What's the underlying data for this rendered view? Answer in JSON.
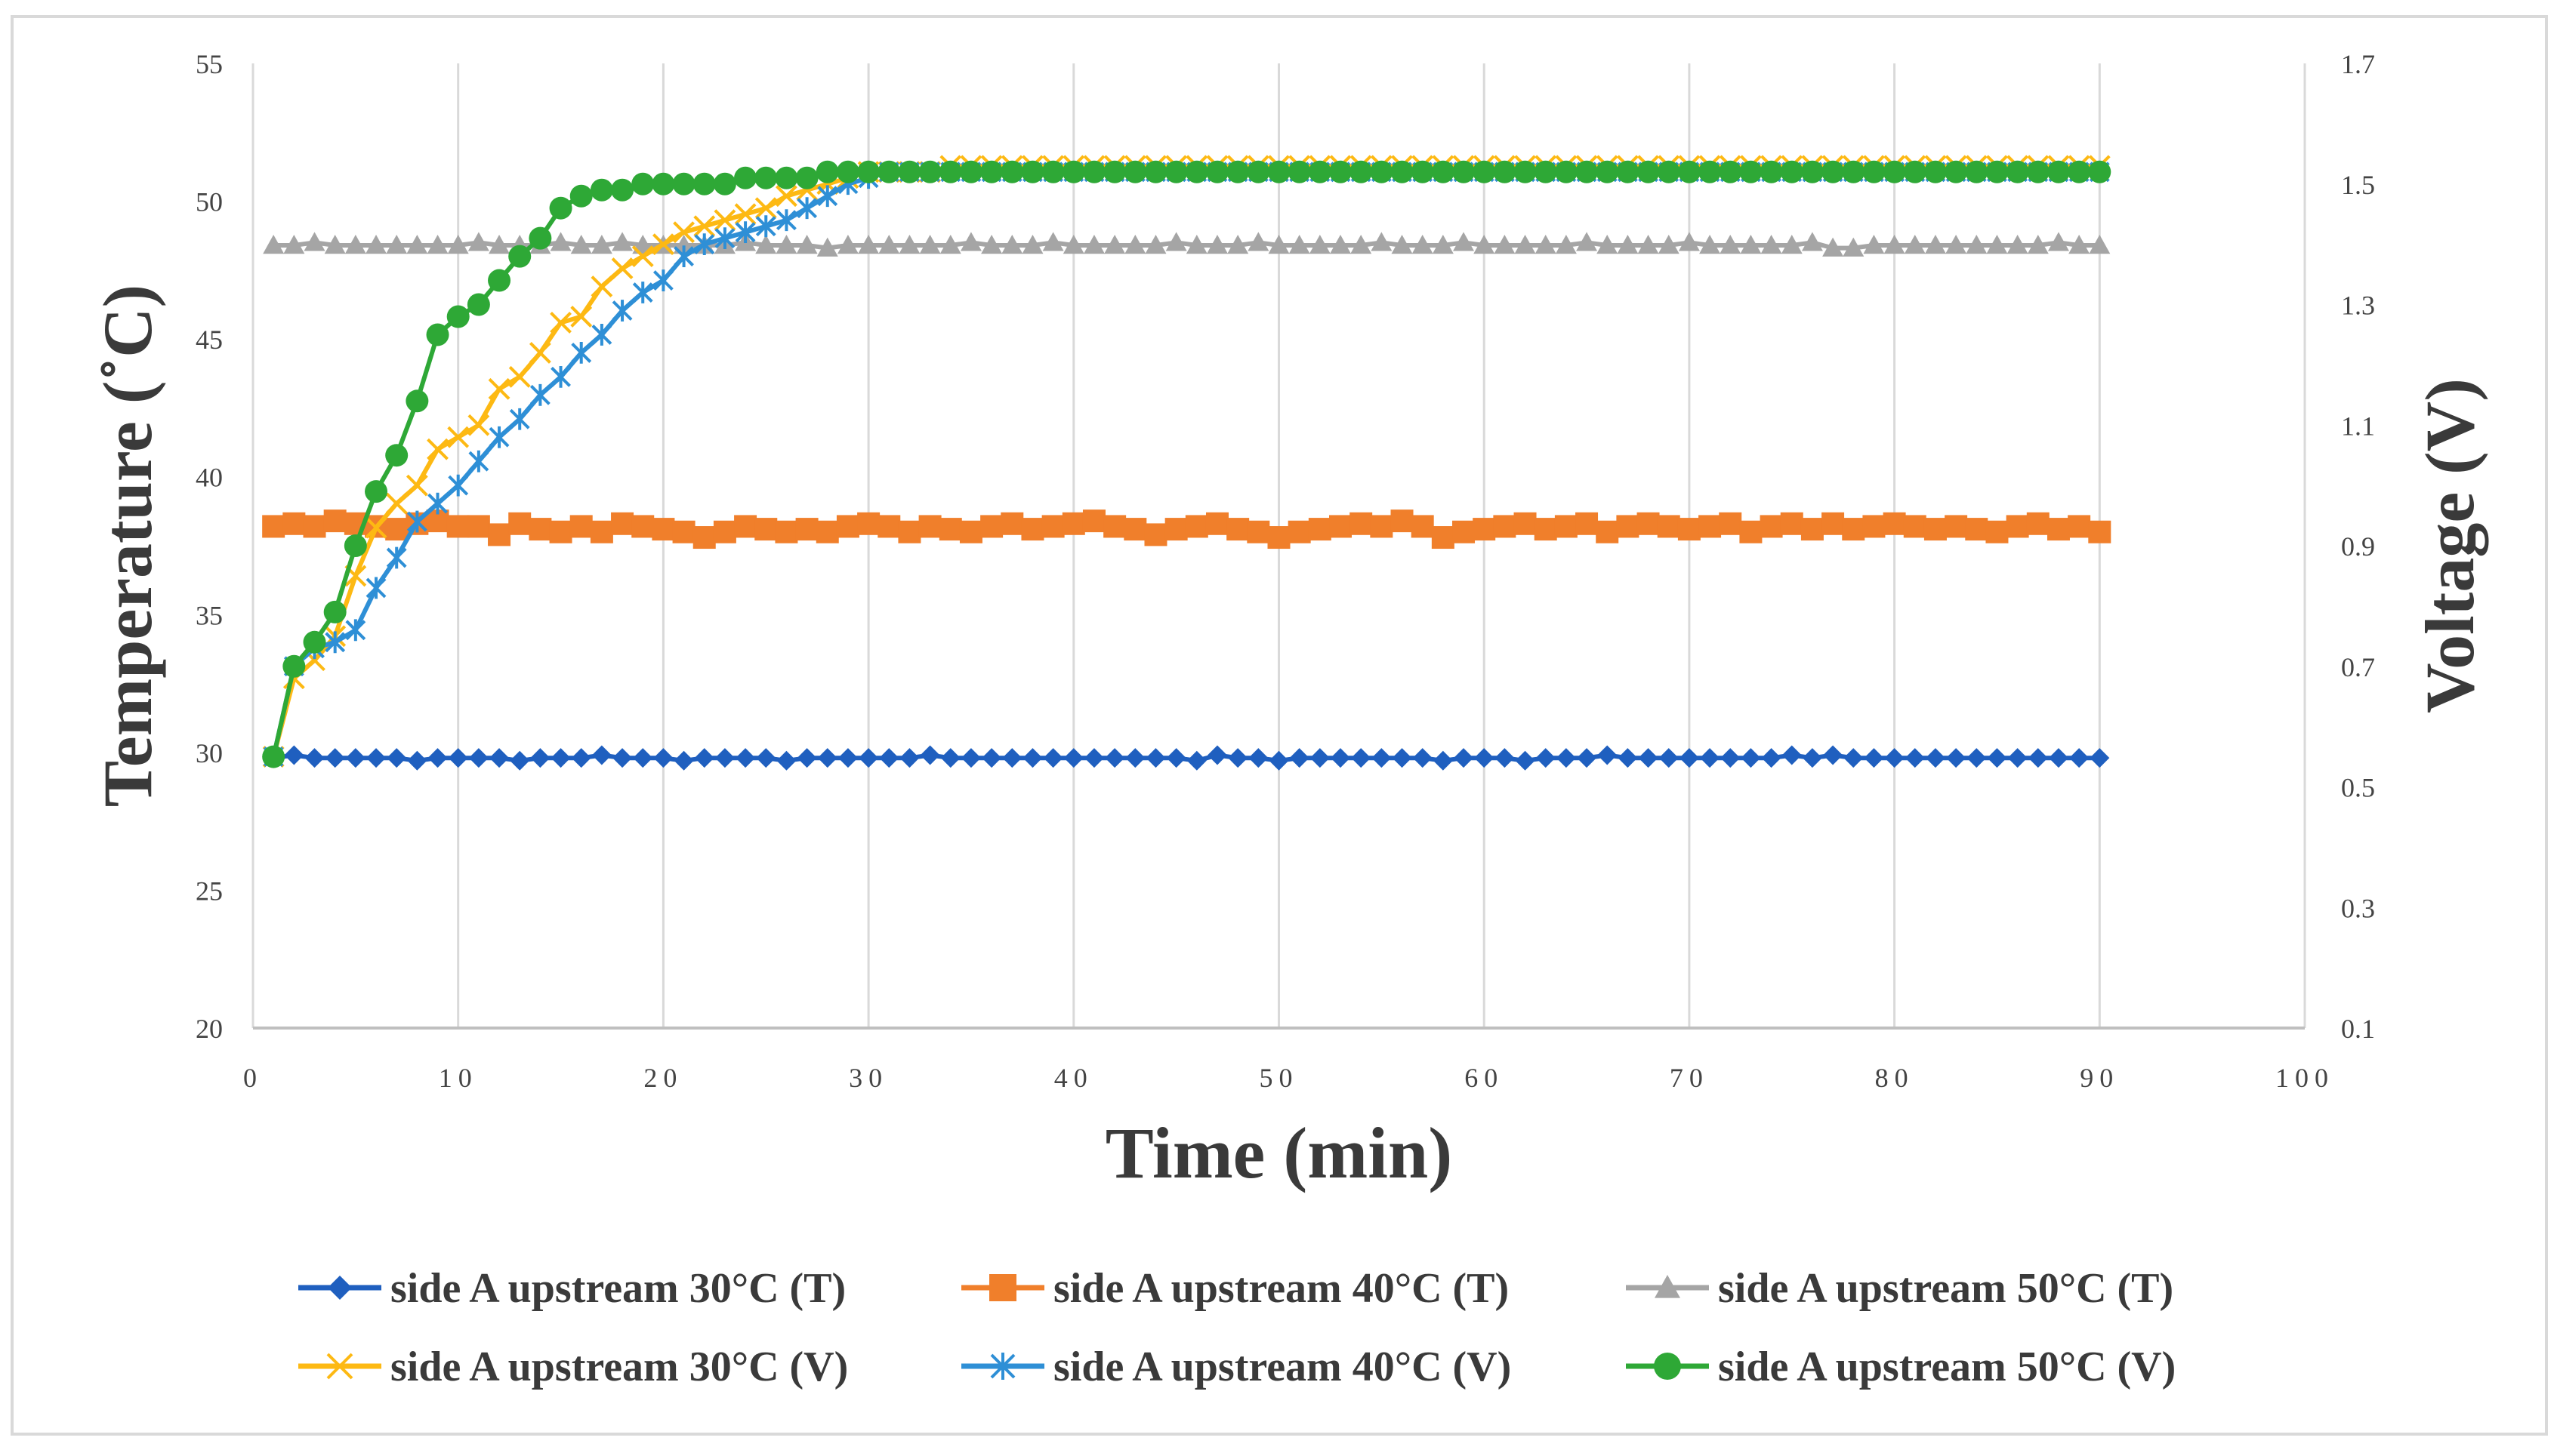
{
  "chart_data": {
    "type": "line",
    "xlabel": "Time (min)",
    "ylabel": "Temperature (˚C)",
    "y2label": "Voltage (V)",
    "xlim": [
      0,
      100
    ],
    "ylim": [
      20,
      55
    ],
    "y2lim": [
      0.1,
      1.7
    ],
    "xticks": [
      "0",
      "10",
      "20",
      "30",
      "40",
      "50",
      "60",
      "70",
      "80",
      "90",
      "100"
    ],
    "yticks": [
      "20",
      "25",
      "30",
      "35",
      "40",
      "45",
      "50",
      "55"
    ],
    "y2ticks": [
      "0.1",
      "0.3",
      "0.5",
      "0.7",
      "0.9",
      "1.1",
      "1.3",
      "1.5",
      "1.7"
    ],
    "grid": "vertical",
    "legend_position": "bottom",
    "series": [
      {
        "name": "side A upstream 30°C (T)",
        "axis": "left",
        "color": "#1f5fbf",
        "marker": "diamond",
        "x_start": 1,
        "x_end": 90,
        "values": [
          29.8,
          29.9,
          29.8,
          29.8,
          29.8,
          29.8,
          29.8,
          29.7,
          29.8,
          29.8,
          29.8,
          29.8,
          29.7,
          29.8,
          29.8,
          29.8,
          29.9,
          29.8,
          29.8,
          29.8,
          29.7,
          29.8,
          29.8,
          29.8,
          29.8,
          29.7,
          29.8,
          29.8,
          29.8,
          29.8,
          29.8,
          29.8,
          29.9,
          29.8,
          29.8,
          29.8,
          29.8,
          29.8,
          29.8,
          29.8,
          29.8,
          29.8,
          29.8,
          29.8,
          29.8,
          29.7,
          29.9,
          29.8,
          29.8,
          29.7,
          29.8,
          29.8,
          29.8,
          29.8,
          29.8,
          29.8,
          29.8,
          29.7,
          29.8,
          29.8,
          29.8,
          29.7,
          29.8,
          29.8,
          29.8,
          29.9,
          29.8,
          29.8,
          29.8,
          29.8,
          29.8,
          29.8,
          29.8,
          29.8,
          29.9,
          29.8,
          29.9,
          29.8,
          29.8,
          29.8,
          29.8,
          29.8,
          29.8,
          29.8,
          29.8,
          29.8,
          29.8,
          29.8,
          29.8,
          29.8
        ]
      },
      {
        "name": "side A upstream 40°C (T)",
        "axis": "left",
        "color": "#f07f2b",
        "marker": "square",
        "x_start": 1,
        "x_end": 90,
        "values": [
          38.2,
          38.3,
          38.2,
          38.4,
          38.3,
          38.2,
          38.1,
          38.3,
          38.4,
          38.2,
          38.2,
          37.9,
          38.3,
          38.1,
          38.0,
          38.2,
          38.0,
          38.3,
          38.2,
          38.1,
          38.0,
          37.8,
          38.0,
          38.2,
          38.1,
          38.0,
          38.1,
          38.0,
          38.2,
          38.3,
          38.2,
          38.0,
          38.2,
          38.1,
          38.0,
          38.2,
          38.3,
          38.1,
          38.2,
          38.3,
          38.4,
          38.2,
          38.1,
          37.9,
          38.1,
          38.2,
          38.3,
          38.1,
          38.0,
          37.8,
          38.0,
          38.1,
          38.2,
          38.3,
          38.2,
          38.4,
          38.2,
          37.8,
          38.0,
          38.1,
          38.2,
          38.3,
          38.1,
          38.2,
          38.3,
          38.0,
          38.2,
          38.3,
          38.2,
          38.1,
          38.2,
          38.3,
          38.0,
          38.2,
          38.3,
          38.1,
          38.3,
          38.1,
          38.2,
          38.3,
          38.2,
          38.1,
          38.2,
          38.1,
          38.0,
          38.2,
          38.3,
          38.1,
          38.2,
          38.0
        ]
      },
      {
        "name": "side A upstream 50°C (T)",
        "axis": "left",
        "color": "#a5a5a5",
        "marker": "triangle",
        "x_start": 1,
        "x_end": 90,
        "values": [
          48.4,
          48.4,
          48.5,
          48.4,
          48.4,
          48.4,
          48.4,
          48.4,
          48.4,
          48.4,
          48.5,
          48.4,
          48.4,
          48.4,
          48.5,
          48.4,
          48.4,
          48.5,
          48.4,
          48.4,
          48.4,
          48.4,
          48.4,
          48.5,
          48.4,
          48.4,
          48.4,
          48.3,
          48.4,
          48.4,
          48.4,
          48.4,
          48.4,
          48.4,
          48.5,
          48.4,
          48.4,
          48.4,
          48.5,
          48.4,
          48.4,
          48.4,
          48.4,
          48.4,
          48.5,
          48.4,
          48.4,
          48.4,
          48.5,
          48.4,
          48.4,
          48.4,
          48.4,
          48.4,
          48.5,
          48.4,
          48.4,
          48.4,
          48.5,
          48.4,
          48.4,
          48.4,
          48.4,
          48.4,
          48.5,
          48.4,
          48.4,
          48.4,
          48.4,
          48.5,
          48.4,
          48.4,
          48.4,
          48.4,
          48.4,
          48.5,
          48.3,
          48.3,
          48.4,
          48.4,
          48.4,
          48.4,
          48.4,
          48.4,
          48.4,
          48.4,
          48.4,
          48.5,
          48.4,
          48.4
        ]
      },
      {
        "name": "side A upstream 30°C (V)",
        "axis": "right",
        "color": "#fdb913",
        "marker": "x",
        "x_start": 1,
        "x_end": 90,
        "values": [
          0.55,
          0.68,
          0.71,
          0.75,
          0.85,
          0.93,
          0.97,
          1.0,
          1.06,
          1.08,
          1.1,
          1.16,
          1.18,
          1.22,
          1.27,
          1.28,
          1.33,
          1.36,
          1.38,
          1.4,
          1.42,
          1.43,
          1.44,
          1.45,
          1.46,
          1.48,
          1.49,
          1.5,
          1.51,
          1.52,
          1.52,
          1.52,
          1.52,
          1.53,
          1.53,
          1.53,
          1.53,
          1.53,
          1.53,
          1.53,
          1.53,
          1.53,
          1.53,
          1.53,
          1.53,
          1.53,
          1.53,
          1.53,
          1.53,
          1.53,
          1.53,
          1.53,
          1.53,
          1.53,
          1.53,
          1.53,
          1.53,
          1.53,
          1.53,
          1.53,
          1.53,
          1.53,
          1.53,
          1.53,
          1.53,
          1.53,
          1.53,
          1.53,
          1.53,
          1.53,
          1.53,
          1.53,
          1.53,
          1.53,
          1.53,
          1.53,
          1.53,
          1.53,
          1.53,
          1.53,
          1.53,
          1.53,
          1.53,
          1.53,
          1.53,
          1.53,
          1.53,
          1.53,
          1.53,
          1.53
        ]
      },
      {
        "name": "side A upstream 40°C (V)",
        "axis": "right",
        "color": "#2e8fd6",
        "marker": "asterisk",
        "x_start": 1,
        "x_end": 90,
        "values": [
          0.55,
          0.7,
          0.73,
          0.74,
          0.76,
          0.83,
          0.88,
          0.94,
          0.97,
          1.0,
          1.04,
          1.08,
          1.11,
          1.15,
          1.18,
          1.22,
          1.25,
          1.29,
          1.32,
          1.34,
          1.38,
          1.4,
          1.41,
          1.42,
          1.43,
          1.44,
          1.46,
          1.48,
          1.5,
          1.51,
          1.52,
          1.52,
          1.52,
          1.52,
          1.52,
          1.52,
          1.52,
          1.52,
          1.52,
          1.52,
          1.52,
          1.52,
          1.52,
          1.52,
          1.52,
          1.52,
          1.52,
          1.52,
          1.52,
          1.52,
          1.52,
          1.52,
          1.52,
          1.52,
          1.52,
          1.52,
          1.52,
          1.52,
          1.52,
          1.52,
          1.52,
          1.52,
          1.52,
          1.52,
          1.52,
          1.52,
          1.52,
          1.52,
          1.52,
          1.52,
          1.52,
          1.52,
          1.52,
          1.52,
          1.52,
          1.52,
          1.52,
          1.52,
          1.52,
          1.52,
          1.52,
          1.52,
          1.52,
          1.52,
          1.52,
          1.52,
          1.52,
          1.52,
          1.52,
          1.52
        ]
      },
      {
        "name": "side A upstream 50°C (V)",
        "axis": "right",
        "color": "#2ea836",
        "marker": "circle",
        "x_start": 1,
        "x_end": 90,
        "values": [
          0.55,
          0.7,
          0.74,
          0.79,
          0.9,
          0.99,
          1.05,
          1.14,
          1.25,
          1.28,
          1.3,
          1.34,
          1.38,
          1.41,
          1.46,
          1.48,
          1.49,
          1.49,
          1.5,
          1.5,
          1.5,
          1.5,
          1.5,
          1.51,
          1.51,
          1.51,
          1.51,
          1.52,
          1.52,
          1.52,
          1.52,
          1.52,
          1.52,
          1.52,
          1.52,
          1.52,
          1.52,
          1.52,
          1.52,
          1.52,
          1.52,
          1.52,
          1.52,
          1.52,
          1.52,
          1.52,
          1.52,
          1.52,
          1.52,
          1.52,
          1.52,
          1.52,
          1.52,
          1.52,
          1.52,
          1.52,
          1.52,
          1.52,
          1.52,
          1.52,
          1.52,
          1.52,
          1.52,
          1.52,
          1.52,
          1.52,
          1.52,
          1.52,
          1.52,
          1.52,
          1.52,
          1.52,
          1.52,
          1.52,
          1.52,
          1.52,
          1.52,
          1.52,
          1.52,
          1.52,
          1.52,
          1.52,
          1.52,
          1.52,
          1.52,
          1.52,
          1.52,
          1.52,
          1.52,
          1.52
        ]
      }
    ],
    "legend_rows": [
      [
        0,
        1,
        2
      ],
      [
        3,
        4,
        5
      ]
    ]
  }
}
